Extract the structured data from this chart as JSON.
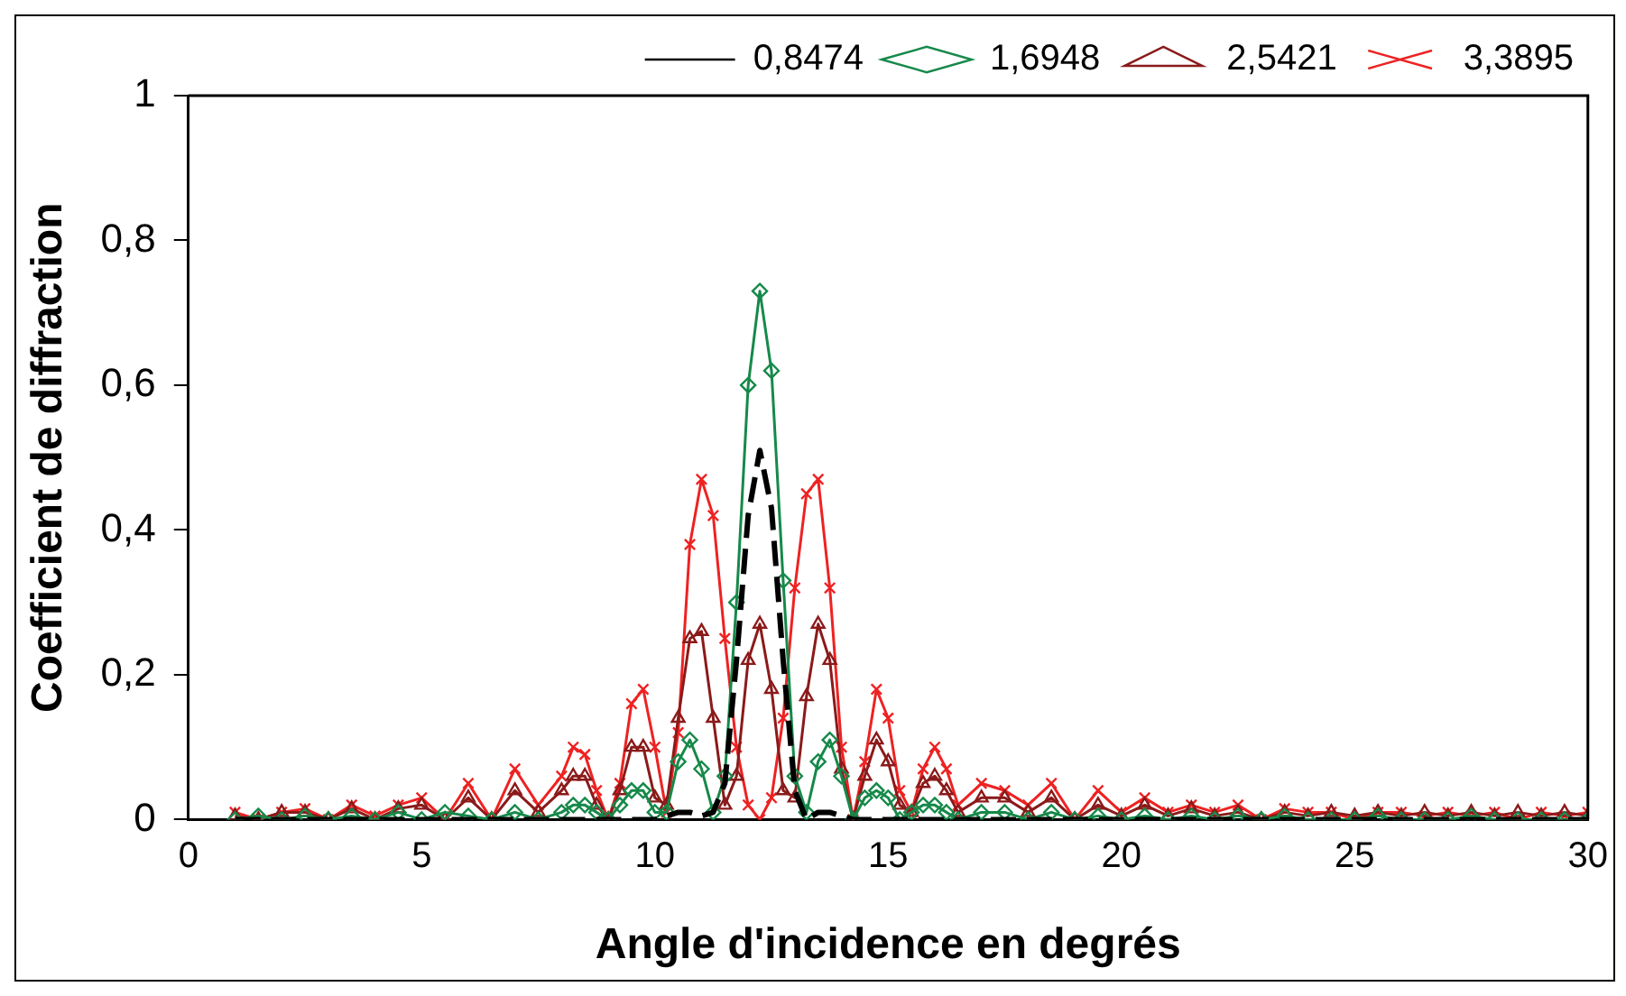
{
  "chart_data": {
    "type": "line",
    "xlabel": "Angle d'incidence en degrés",
    "ylabel": "Coefficient de diffraction",
    "x": [
      1,
      1.5,
      2,
      2.5,
      3,
      3.5,
      4,
      4.5,
      5,
      5.5,
      6,
      6.5,
      7,
      7.5,
      8,
      8.25,
      8.5,
      8.75,
      9,
      9.25,
      9.5,
      9.75,
      10,
      10.25,
      10.5,
      10.75,
      11,
      11.25,
      11.5,
      11.75,
      12,
      12.25,
      12.5,
      12.75,
      13,
      13.25,
      13.5,
      13.75,
      14,
      14.25,
      14.5,
      14.75,
      15,
      15.25,
      15.5,
      15.75,
      16,
      16.25,
      16.5,
      17,
      17.5,
      18,
      18.5,
      19,
      19.5,
      20,
      20.5,
      21,
      21.5,
      22,
      22.5,
      23,
      23.5,
      24,
      24.5,
      25,
      25.5,
      26,
      26.5,
      27,
      27.5,
      28,
      28.5,
      29,
      29.5,
      30
    ],
    "series": [
      {
        "name": "0,8474",
        "color": "#000000",
        "marker": "none",
        "line_style": "dashed",
        "values": [
          0,
          0,
          0,
          0,
          0,
          0,
          0,
          0,
          0,
          0,
          0,
          0,
          0,
          0,
          0,
          0,
          0,
          0,
          0,
          0,
          0,
          0,
          0,
          0.005,
          0.01,
          0.01,
          0.005,
          0.01,
          0.05,
          0.22,
          0.42,
          0.51,
          0.43,
          0.22,
          0.04,
          0,
          0.01,
          0.01,
          0.005,
          0,
          0,
          0,
          0,
          0,
          0,
          0,
          0,
          0,
          0,
          0,
          0,
          0,
          0,
          0,
          0,
          0,
          0,
          0,
          0,
          0,
          0,
          0,
          0,
          0,
          0,
          0,
          0,
          0,
          0,
          0,
          0,
          0,
          0,
          0,
          0,
          0
        ]
      },
      {
        "name": "1,6948",
        "color": "#16894a",
        "marker": "diamond",
        "line_style": "solid",
        "values": [
          0,
          0.005,
          0,
          0.005,
          0,
          0.005,
          0,
          0.01,
          0,
          0.01,
          0.005,
          0,
          0.01,
          0,
          0.01,
          0.02,
          0.02,
          0.01,
          0,
          0.02,
          0.04,
          0.04,
          0.01,
          0.01,
          0.08,
          0.11,
          0.07,
          0.01,
          0.06,
          0.3,
          0.6,
          0.73,
          0.62,
          0.33,
          0.06,
          0.01,
          0.08,
          0.11,
          0.06,
          0,
          0.03,
          0.04,
          0.03,
          0,
          0.01,
          0.02,
          0.02,
          0.01,
          0,
          0.01,
          0.01,
          0,
          0.01,
          0,
          0.005,
          0,
          0.005,
          0,
          0.005,
          0,
          0.005,
          0,
          0.005,
          0,
          0,
          0,
          0.005,
          0,
          0,
          0,
          0.005,
          0,
          0,
          0,
          0,
          0
        ]
      },
      {
        "name": "2,5421",
        "color": "#8b1a1a",
        "marker": "triangle",
        "line_style": "solid",
        "values": [
          0.005,
          0,
          0.01,
          0.01,
          0,
          0.015,
          0,
          0.015,
          0.02,
          0,
          0.03,
          0,
          0.04,
          0.01,
          0.04,
          0.06,
          0.06,
          0.02,
          0,
          0.04,
          0.1,
          0.1,
          0.03,
          0.02,
          0.14,
          0.25,
          0.26,
          0.14,
          0.02,
          0.06,
          0.22,
          0.27,
          0.18,
          0.04,
          0.03,
          0.17,
          0.27,
          0.22,
          0.07,
          0,
          0.06,
          0.11,
          0.08,
          0.02,
          0.01,
          0.05,
          0.06,
          0.04,
          0.01,
          0.03,
          0.03,
          0.01,
          0.03,
          0,
          0.02,
          0.005,
          0.02,
          0.005,
          0.015,
          0.005,
          0.01,
          0,
          0.01,
          0.005,
          0.01,
          0.005,
          0.01,
          0.005,
          0.01,
          0.005,
          0.01,
          0.005,
          0.01,
          0.005,
          0.01,
          0.005
        ]
      },
      {
        "name": "3,3895",
        "color": "#ee2222",
        "marker": "cross",
        "line_style": "solid",
        "values": [
          0.01,
          0,
          0.01,
          0.015,
          0,
          0.02,
          0.005,
          0.02,
          0.03,
          0,
          0.05,
          0,
          0.07,
          0.02,
          0.06,
          0.1,
          0.09,
          0.04,
          0,
          0.05,
          0.16,
          0.18,
          0.1,
          0.01,
          0.12,
          0.38,
          0.47,
          0.42,
          0.25,
          0.1,
          0.02,
          0,
          0.03,
          0.14,
          0.32,
          0.45,
          0.47,
          0.32,
          0.1,
          0,
          0.08,
          0.18,
          0.14,
          0.04,
          0.01,
          0.07,
          0.1,
          0.07,
          0.02,
          0.05,
          0.04,
          0.02,
          0.05,
          0,
          0.04,
          0.01,
          0.03,
          0.01,
          0.02,
          0.01,
          0.02,
          0,
          0.015,
          0.01,
          0.01,
          0,
          0.01,
          0.01,
          0.005,
          0.01,
          0.005,
          0.01,
          0,
          0.01,
          0.005,
          0.01
        ]
      }
    ],
    "xlim": [
      0,
      30
    ],
    "xticks": [
      0,
      5,
      10,
      15,
      20,
      25,
      30
    ],
    "ylim": [
      0,
      1
    ],
    "yticks": [
      0,
      {
        "value": 0.2,
        "label": "0,2"
      },
      {
        "value": 0.4,
        "label": "0,4"
      },
      {
        "value": 0.6,
        "label": "0,6"
      },
      {
        "value": 0.8,
        "label": "0,8"
      },
      1
    ],
    "grid": false,
    "legend": "top"
  }
}
